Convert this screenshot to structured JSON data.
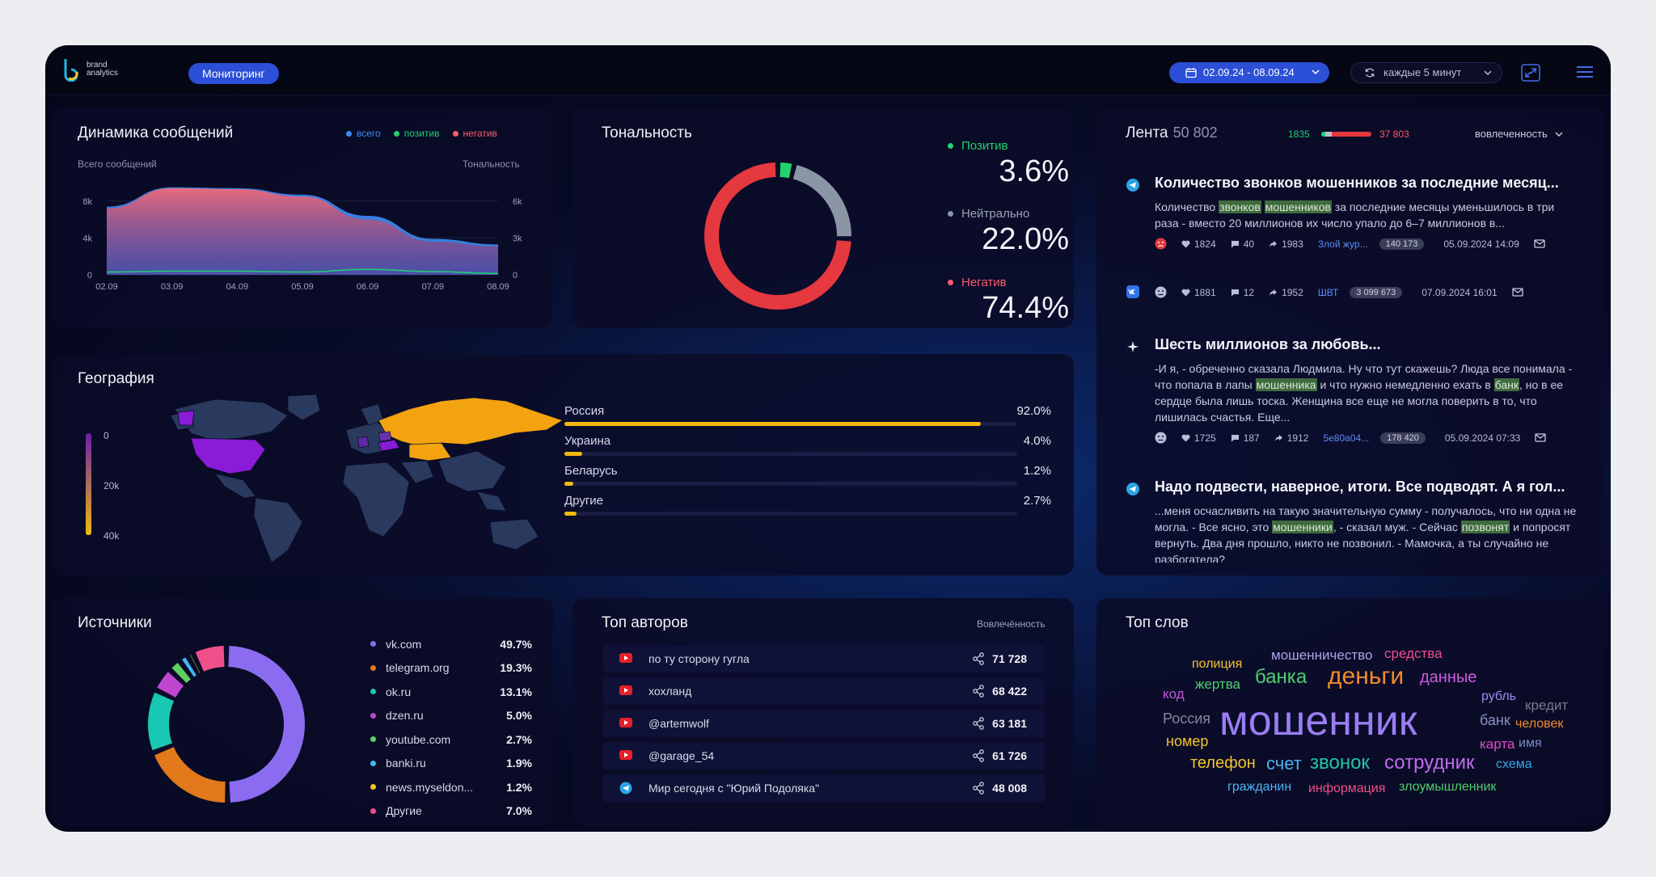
{
  "header": {
    "logo_line1": "brand",
    "logo_line2": "analytics",
    "monitor_label": "Мониторинг",
    "date_range": "02.09.24 - 08.09.24",
    "refresh_label": "каждые 5 минут"
  },
  "dynamics": {
    "title": "Динамика сообщений",
    "legend": [
      {
        "label": "всего",
        "color": "#3d8bf5"
      },
      {
        "label": "позитив",
        "color": "#1fcf74"
      },
      {
        "label": "негатив",
        "color": "#ff5a6e"
      }
    ],
    "left_axis_title": "Всего сообщений",
    "right_axis_title": "Тональность"
  },
  "chart_data": {
    "type": "area",
    "x": [
      "02.09",
      "03.09",
      "04.09",
      "05.09",
      "06.09",
      "07.09",
      "08.09"
    ],
    "series": [
      {
        "name": "всего",
        "values": [
          7400,
          9500,
          9400,
          8700,
          6400,
          3900,
          3300
        ]
      },
      {
        "name": "негатив",
        "values": [
          7200,
          9400,
          9300,
          8500,
          6000,
          3600,
          3100
        ]
      },
      {
        "name": "позитив",
        "values": [
          300,
          400,
          400,
          300,
          600,
          350,
          150
        ]
      }
    ],
    "yticks_left": [
      "0",
      "4k",
      "8k"
    ],
    "yticks_right": [
      "0",
      "3k",
      "6k"
    ],
    "ylim": [
      0,
      10000
    ]
  },
  "tonality": {
    "title": "Тональность",
    "items": [
      {
        "label": "Позитив",
        "value": "3.6%",
        "share": 3.6,
        "color": "#1fd46f"
      },
      {
        "label": "Нейтрально",
        "value": "22.0%",
        "share": 22.0,
        "color": "#8a95a5"
      },
      {
        "label": "Негатив",
        "value": "74.4%",
        "share": 74.4,
        "color": "#e5383f"
      }
    ]
  },
  "geography": {
    "title": "География",
    "scale_ticks": [
      "0",
      "20k",
      "40k"
    ],
    "rows": [
      {
        "label": "Россия",
        "value": "92.0%",
        "share": 92.0
      },
      {
        "label": "Украина",
        "value": "4.0%",
        "share": 4.0
      },
      {
        "label": "Беларусь",
        "value": "1.2%",
        "share": 1.2
      },
      {
        "label": "Другие",
        "value": "2.7%",
        "share": 2.7
      }
    ]
  },
  "feed": {
    "title": "Лента",
    "count": "50 802",
    "positive": "1835",
    "negative": "37 803",
    "sort_label": "вовлеченность",
    "items": [
      {
        "title": "Количество звонков мошенников за последние месяц...",
        "body_parts": [
          "Количество ",
          "звонков",
          " ",
          "мошенников",
          " за последние месяцы уменьшилось в три раза - вместо 20 миллионов их число упало до 6–7 миллионов в..."
        ],
        "likes": "1824",
        "comments": "40",
        "shares": "1983",
        "source": "Злой жур...",
        "badge": "140 173",
        "date": "05.09.2024 14:09"
      },
      {
        "likes": "1881",
        "comments": "12",
        "shares": "1952",
        "source": "ШВТ",
        "badge": "3 099 673",
        "date": "07.09.2024 16:01"
      },
      {
        "title": "Шесть миллионов за любовь...",
        "body_parts": [
          "-И я, - обреченно сказала Людмила. Ну что тут скажешь? Люда все понимала - что попала в лапы ",
          "мошенника",
          " и что нужно немедленно ехать в ",
          "банк",
          ", но в ее сердце была лишь тоска. Женщина все еще не могла поверить в то, что лишилась счастья. Еще..."
        ],
        "likes": "1725",
        "comments": "187",
        "shares": "1912",
        "source": "5e80a04...",
        "badge": "178 420",
        "date": "05.09.2024 07:33"
      },
      {
        "title": "Надо подвести, наверное, итоги. Все подводят. А я гол...",
        "body_parts": [
          "...меня осчасливить на такую значительную сумму - получалось, что ни одна не могла. - Все ясно, это ",
          "мошенники",
          ", - сказал муж. - Сейчас ",
          "позвонят",
          " и попросят вернуть. Два дня прошло, никто не позвонил. - Мамочка, а ты случайно не разбогатела?"
        ]
      }
    ]
  },
  "sources": {
    "title": "Источники",
    "items": [
      {
        "label": "vk.com",
        "value": "49.7%",
        "share": 49.7,
        "color": "#8b6cf0"
      },
      {
        "label": "telegram.org",
        "value": "19.3%",
        "share": 19.3,
        "color": "#e2791b"
      },
      {
        "label": "ok.ru",
        "value": "13.1%",
        "share": 13.1,
        "color": "#19c8b0"
      },
      {
        "label": "dzen.ru",
        "value": "5.0%",
        "share": 5.0,
        "color": "#c046cf"
      },
      {
        "label": "youtube.com",
        "value": "2.7%",
        "share": 2.7,
        "color": "#5fcf63"
      },
      {
        "label": "banki.ru",
        "value": "1.9%",
        "share": 1.9,
        "color": "#45b7f0"
      },
      {
        "label": "news.myseldon...",
        "value": "1.2%",
        "share": 1.2,
        "color": "#f2c62a"
      },
      {
        "label": "Другие",
        "value": "7.0%",
        "share": 7.0,
        "color": "#f0508a"
      }
    ]
  },
  "authors": {
    "title": "Топ авторов",
    "sort_label": "Вовлечённость",
    "rows": [
      {
        "name": "по ту сторону гугла",
        "value": "71 728",
        "icon": "youtube-icon"
      },
      {
        "name": "хохланд",
        "value": "68 422",
        "icon": "youtube-icon"
      },
      {
        "name": "@artemwolf",
        "value": "63 181",
        "icon": "youtube-icon"
      },
      {
        "name": "@garage_54",
        "value": "61 726",
        "icon": "youtube-icon"
      },
      {
        "name": "Мир сегодня с \"Юрий Подоляка\"",
        "value": "48 008",
        "icon": "telegram-icon"
      }
    ]
  },
  "words": {
    "title": "Топ слов",
    "items": [
      {
        "text": "мошенничество",
        "color": "#a9a3ea"
      },
      {
        "text": "средства",
        "color": "#ee4f8e"
      },
      {
        "text": "полиция",
        "color": "#f4c430"
      },
      {
        "text": "банка",
        "color": "#4fcf6c"
      },
      {
        "text": "деньги",
        "color": "#f18a2a"
      },
      {
        "text": "данные",
        "color": "#d05ae0"
      },
      {
        "text": "код",
        "color": "#c455d6"
      },
      {
        "text": "жертва",
        "color": "#4fcf6c"
      },
      {
        "text": "рубль",
        "color": "#9c8cf0"
      },
      {
        "text": "кредит",
        "color": "#7d7a8e"
      },
      {
        "text": "Россия",
        "color": "#8a8698"
      },
      {
        "text": "мошенник",
        "color": "#9b7df2"
      },
      {
        "text": "банк",
        "color": "#8a93c8"
      },
      {
        "text": "человек",
        "color": "#f08c2a"
      },
      {
        "text": "номер",
        "color": "#f4c430"
      },
      {
        "text": "карта",
        "color": "#e34cc7"
      },
      {
        "text": "имя",
        "color": "#7d8cc8"
      },
      {
        "text": "телефон",
        "color": "#f4c430"
      },
      {
        "text": "счет",
        "color": "#4db4f5"
      },
      {
        "text": "звонок",
        "color": "#22c5a8"
      },
      {
        "text": "сотрудник",
        "color": "#c36bf0"
      },
      {
        "text": "схема",
        "color": "#3aa5f0"
      },
      {
        "text": "гражданин",
        "color": "#4db4f5"
      },
      {
        "text": "информация",
        "color": "#f0508a"
      },
      {
        "text": "злоумышленник",
        "color": "#4fcf6c"
      }
    ]
  }
}
